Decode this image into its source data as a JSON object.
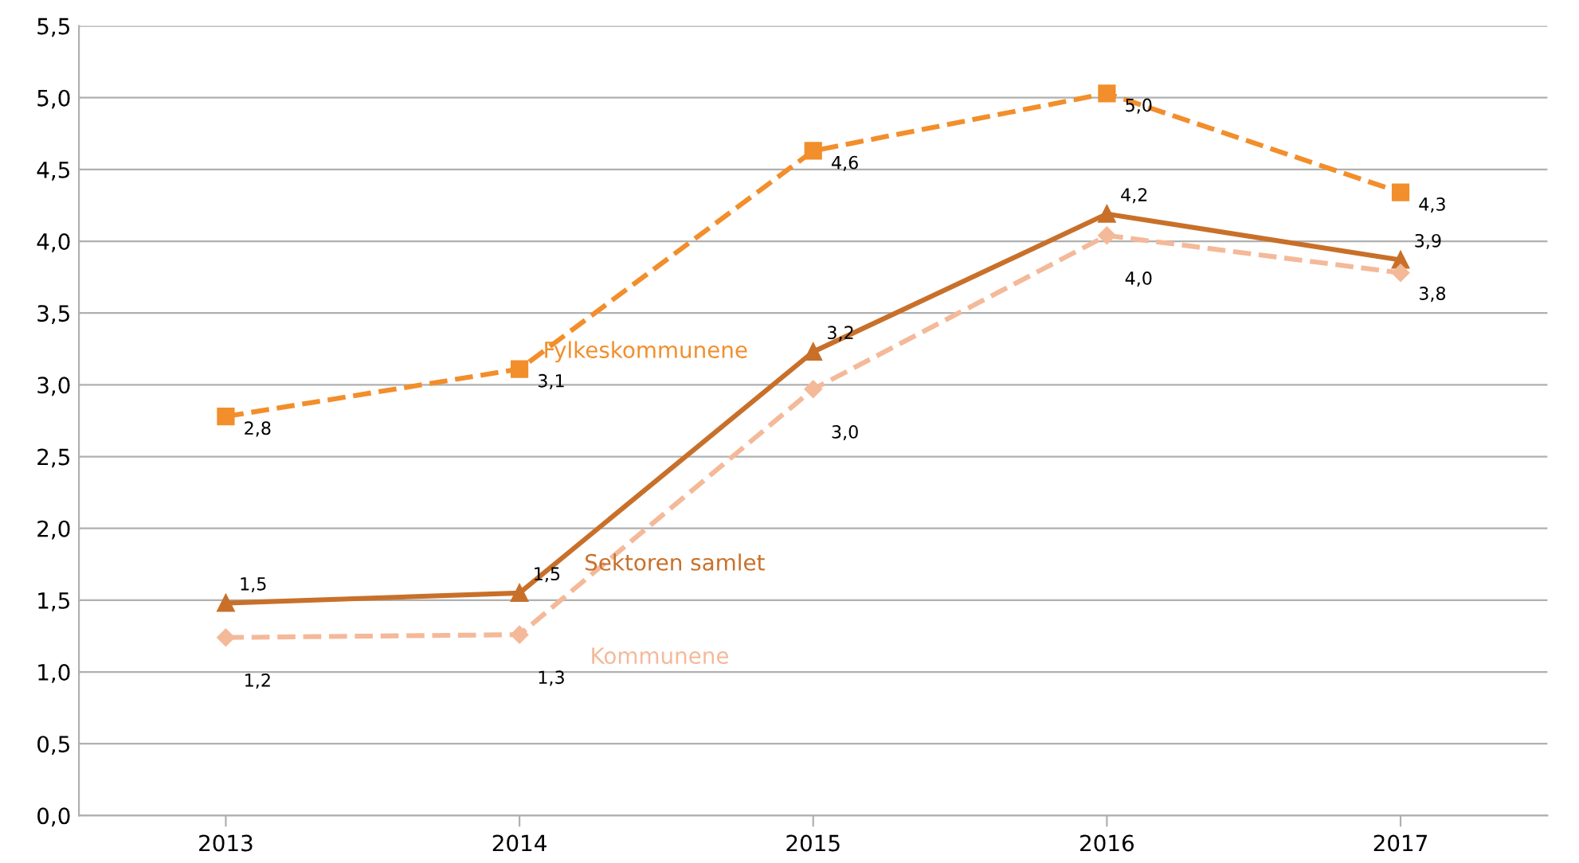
{
  "chart_data": {
    "type": "line",
    "categories": [
      "2013",
      "2014",
      "2015",
      "2016",
      "2017"
    ],
    "series": [
      {
        "name": "Fylkeskommunene",
        "color": "#f28e2b",
        "values": [
          2.78,
          3.11,
          4.63,
          5.03,
          4.34
        ],
        "value_labels": [
          "2,8",
          "3,1",
          "4,6",
          "5,0",
          "4,3"
        ],
        "marker": "square",
        "line_style": "dashed"
      },
      {
        "name": "Sektoren samlet",
        "color": "#c8702a",
        "values": [
          1.48,
          1.55,
          3.23,
          4.19,
          3.87
        ],
        "value_labels": [
          "1,5",
          "1,5",
          "3,2",
          "4,2",
          "3,9"
        ],
        "marker": "triangle",
        "line_style": "solid"
      },
      {
        "name": "Kommunene",
        "color": "#f4b999",
        "values": [
          1.24,
          1.26,
          2.97,
          4.04,
          3.78
        ],
        "value_labels": [
          "1,2",
          "1,3",
          "3,0",
          "4,0",
          "3,8"
        ],
        "marker": "diamond",
        "line_style": "dashed"
      }
    ],
    "ylim": [
      0,
      5.5
    ],
    "yticks": [
      {
        "value": 0,
        "label": "0,0"
      },
      {
        "value": 0.5,
        "label": "0,5"
      },
      {
        "value": 1,
        "label": "1,0"
      },
      {
        "value": 1.5,
        "label": "1,5"
      },
      {
        "value": 2,
        "label": "2,0"
      },
      {
        "value": 2.5,
        "label": "2,5"
      },
      {
        "value": 3,
        "label": "3,0"
      },
      {
        "value": 3.5,
        "label": "3,5"
      },
      {
        "value": 4,
        "label": "4,0"
      },
      {
        "value": 4.5,
        "label": "4,5"
      },
      {
        "value": 5,
        "label": "5,0"
      },
      {
        "value": 5.5,
        "label": "5,5"
      }
    ],
    "grid": "y",
    "legend": false
  }
}
